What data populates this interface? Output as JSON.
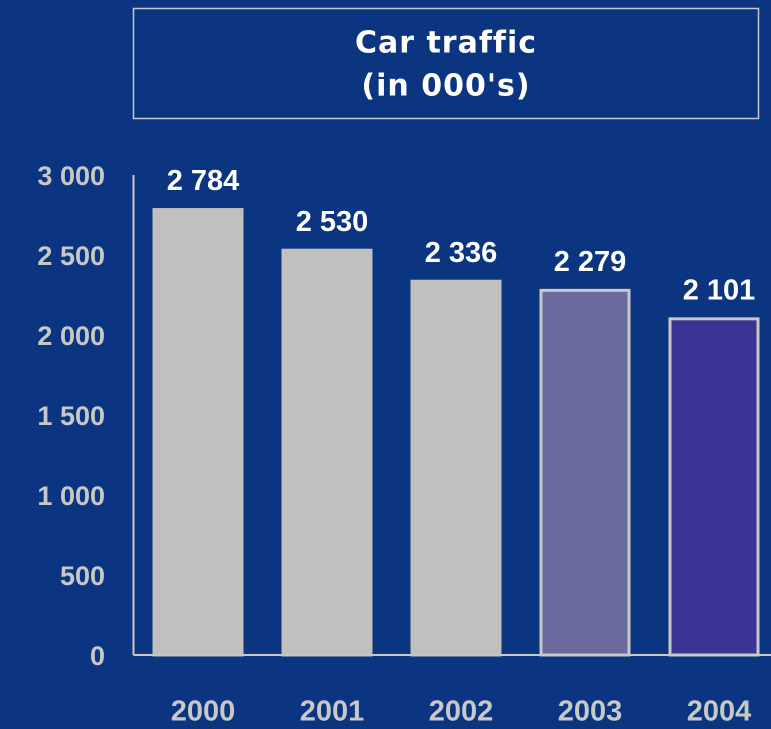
{
  "chart_data": {
    "type": "bar",
    "title": [
      "Car traffic",
      "(in 000's)"
    ],
    "categories": [
      "2000",
      "2001",
      "2002",
      "2003",
      "2004"
    ],
    "values": [
      2784,
      2530,
      2336,
      2279,
      2101
    ],
    "value_labels": [
      "2 784",
      "2 530",
      "2 336",
      "2 279",
      "2 101"
    ],
    "colors": [
      "#c0c0c0",
      "#c0c0c0",
      "#c0c0c0",
      "#6a6a9c",
      "#3a3594"
    ],
    "edgecolors": [
      "#c0c0c0",
      "#c0c0c0",
      "#c0c0c0",
      "#c8c8c8",
      "#c8c8c8"
    ],
    "ylim": [
      0,
      3000
    ],
    "yticks": [
      0,
      500,
      {
        "value": 1000,
        "label": "1 000"
      },
      {
        "value": 1500,
        "label": "1 500"
      },
      {
        "value": 2000,
        "label": "2 000"
      },
      {
        "value": 2500,
        "label": "2 500"
      },
      {
        "value": 3000,
        "label": "3 000"
      }
    ],
    "grid": false
  }
}
